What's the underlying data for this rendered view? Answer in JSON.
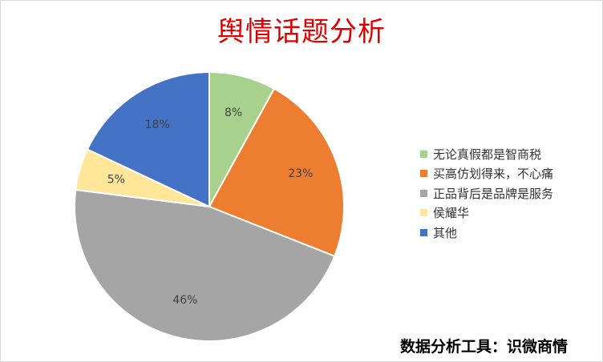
{
  "chart_data": {
    "type": "pie",
    "title": "舆情话题分析",
    "series": [
      {
        "name": "无论真假都是智商税",
        "value": 8,
        "label": "8%",
        "color": "#a9d18e"
      },
      {
        "name": "买高仿划得来，不心痛",
        "value": 23,
        "label": "23%",
        "color": "#ed7d31"
      },
      {
        "name": "正品背后是品牌是服务",
        "value": 46,
        "label": "46%",
        "color": "#a5a5a5"
      },
      {
        "name": "侯耀华",
        "value": 5,
        "label": "5%",
        "color": "#ffe699"
      },
      {
        "name": "其他",
        "value": 18,
        "label": "18%",
        "color": "#4472c4"
      }
    ],
    "legend_position": "right"
  },
  "footer": "数据分析工具：识微商情"
}
